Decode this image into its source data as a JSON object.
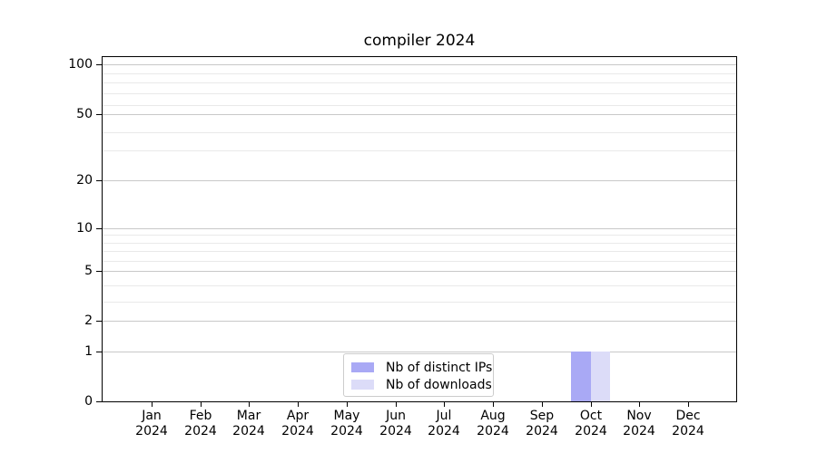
{
  "chart_data": {
    "type": "bar",
    "title": "compiler 2024",
    "categories": [
      "Jan 2024",
      "Feb 2024",
      "Mar 2024",
      "Apr 2024",
      "May 2024",
      "Jun 2024",
      "Jul 2024",
      "Aug 2024",
      "Sep 2024",
      "Oct 2024",
      "Nov 2024",
      "Dec 2024"
    ],
    "series": [
      {
        "name": "Nb of distinct IPs",
        "color": "#a9a9f5",
        "values": [
          0,
          0,
          0,
          0,
          0,
          0,
          0,
          0,
          0,
          1,
          0,
          0
        ]
      },
      {
        "name": "Nb of downloads",
        "color": "#dcdcf8",
        "values": [
          0,
          0,
          0,
          0,
          0,
          0,
          0,
          0,
          0,
          1,
          0,
          0
        ]
      }
    ],
    "y_axis": {
      "scale": "symlog",
      "ylim": [
        0,
        120
      ],
      "ticks": [
        {
          "value": 0,
          "pos": 0.0
        },
        {
          "value": 1,
          "pos": 0.1444
        },
        {
          "value": 2,
          "pos": 0.2336
        },
        {
          "value": 5,
          "pos": 0.378
        },
        {
          "value": 10,
          "pos": 0.5039
        },
        {
          "value": 20,
          "pos": 0.643
        },
        {
          "value": 50,
          "pos": 0.8333
        },
        {
          "value": 100,
          "pos": 0.979
        }
      ],
      "minor_ticks": [
        {
          "value": 3,
          "pos": 0.2887
        },
        {
          "value": 4,
          "pos": 0.336
        },
        {
          "value": 6,
          "pos": 0.4068
        },
        {
          "value": 7,
          "pos": 0.4357
        },
        {
          "value": 8,
          "pos": 0.4593
        },
        {
          "value": 9,
          "pos": 0.4829
        },
        {
          "value": 30,
          "pos": 0.7297
        },
        {
          "value": 40,
          "pos": 0.7822
        },
        {
          "value": 60,
          "pos": 0.8609
        },
        {
          "value": 70,
          "pos": 0.895
        },
        {
          "value": 80,
          "pos": 0.9265
        },
        {
          "value": 90,
          "pos": 0.9528
        }
      ]
    },
    "grid": true,
    "legend_position": "lower center",
    "colors": {
      "grid_major": "#c8c8c8",
      "grid_minor": "#e9e9e9",
      "axis": "#000000",
      "text": "#000000"
    }
  }
}
